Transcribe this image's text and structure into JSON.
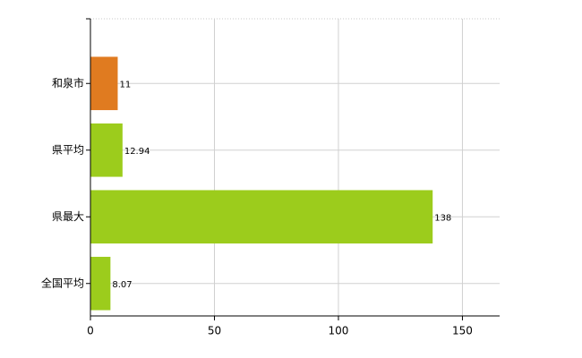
{
  "chart_data": {
    "type": "barh",
    "categories": [
      "和泉市",
      "県平均",
      "県最大",
      "全国平均"
    ],
    "values": [
      11,
      12.94,
      138,
      8.07
    ],
    "colors": [
      "#e07b20",
      "#9ccc1c",
      "#9ccc1c",
      "#9ccc1c"
    ],
    "xlim": [
      0,
      165
    ],
    "xticks": [
      0,
      50,
      100,
      150
    ],
    "grid": true
  }
}
